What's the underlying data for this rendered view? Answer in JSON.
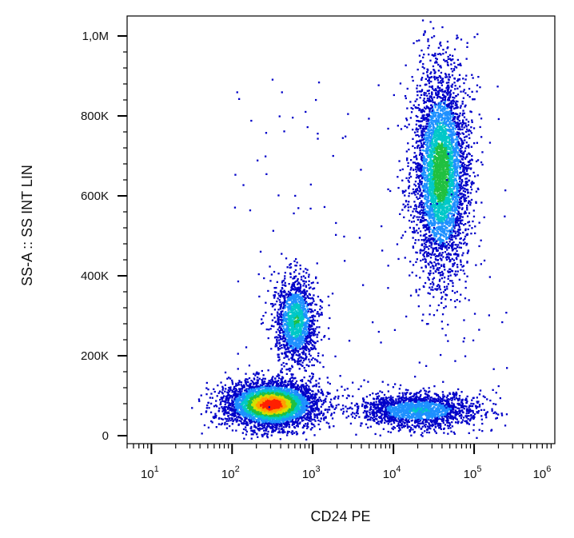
{
  "chart_data": {
    "type": "scatter",
    "subtype": "density-dot-plot",
    "title": "",
    "xlabel": "CD24 PE",
    "ylabel": "SS-A :: SS INT LIN",
    "x_scale": "log",
    "y_scale": "linear",
    "xlim": [
      5,
      1000000
    ],
    "ylim": [
      -20000,
      1050000
    ],
    "x_ticks": [
      {
        "value": 10,
        "base": "10",
        "exp": "1"
      },
      {
        "value": 100,
        "base": "10",
        "exp": "2"
      },
      {
        "value": 1000,
        "base": "10",
        "exp": "3"
      },
      {
        "value": 10000,
        "base": "10",
        "exp": "4"
      },
      {
        "value": 100000,
        "base": "10",
        "exp": "5"
      },
      {
        "value": 1000000,
        "base": "10",
        "exp": "6"
      }
    ],
    "y_ticks": [
      {
        "value": 0,
        "label": "0"
      },
      {
        "value": 200000,
        "label": "200K"
      },
      {
        "value": 400000,
        "label": "400K"
      },
      {
        "value": 600000,
        "label": "600K"
      },
      {
        "value": 800000,
        "label": "800K"
      },
      {
        "value": 1000000,
        "label": "1,0M"
      }
    ],
    "grid": false,
    "colormap": [
      "#0000c8",
      "#1e90ff",
      "#00c8c8",
      "#20c040",
      "#d4e000",
      "#ffa000",
      "#ff2000"
    ],
    "clusters": [
      {
        "x_center": 300,
        "x_spread_log": 0.28,
        "y_center": 80000,
        "y_spread": 28000,
        "count": 4200,
        "peak": 1.0
      },
      {
        "x_center": 600,
        "x_spread_log": 0.13,
        "y_center": 290000,
        "y_spread": 55000,
        "count": 1500,
        "peak": 0.45
      },
      {
        "x_center": 20000,
        "x_spread_log": 0.38,
        "y_center": 65000,
        "y_spread": 22000,
        "count": 1800,
        "peak": 0.3
      },
      {
        "x_center": 38000,
        "x_spread_log": 0.17,
        "y_center": 660000,
        "y_spread": 130000,
        "count": 4200,
        "peak": 0.55
      }
    ]
  }
}
